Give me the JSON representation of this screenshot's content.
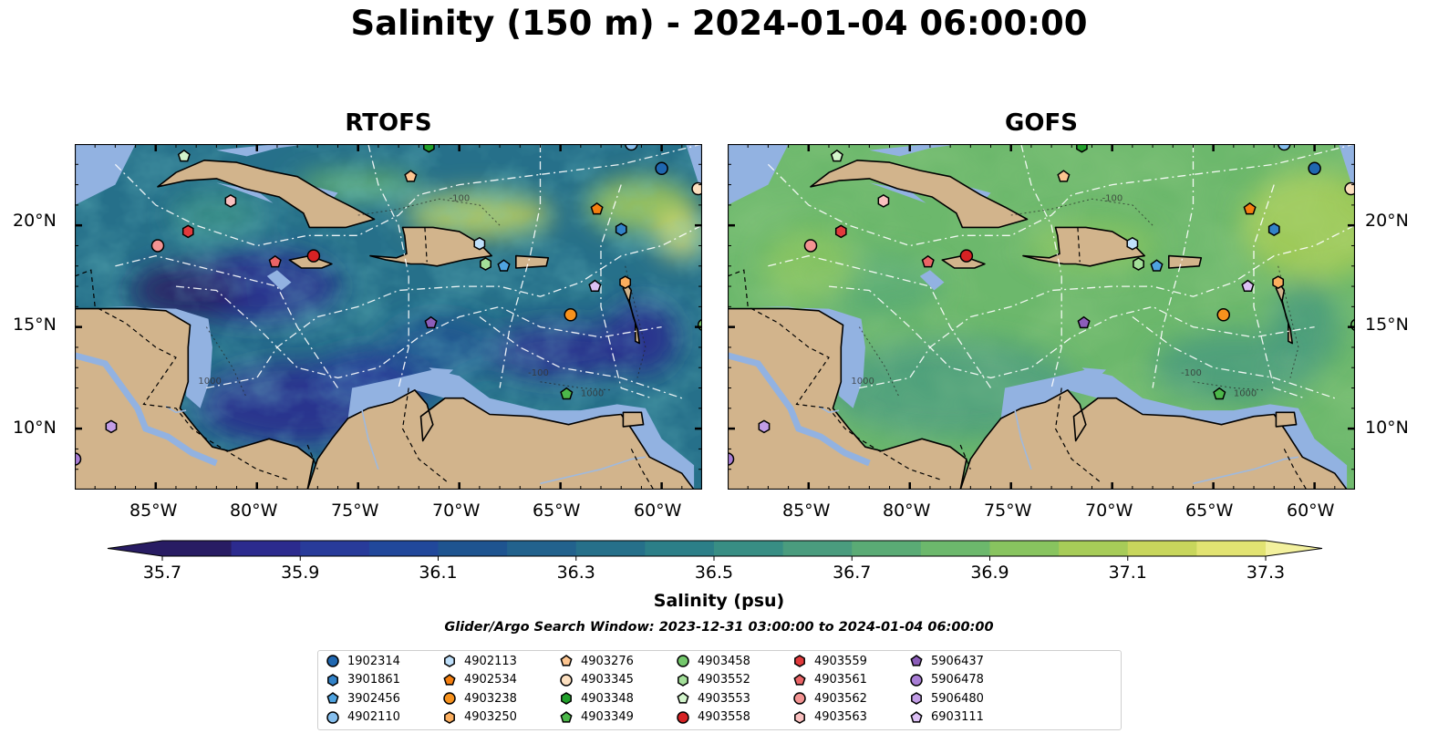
{
  "title": "Salinity (150 m) - 2024-01-04 06:00:00",
  "panels": [
    {
      "title": "RTOFS",
      "style": "rtofs"
    },
    {
      "title": "GOFS",
      "style": "gofs"
    }
  ],
  "lon_ticks": [
    "85°W",
    "80°W",
    "75°W",
    "70°W",
    "65°W",
    "60°W"
  ],
  "lat_ticks": [
    "20°N",
    "15°N",
    "10°N"
  ],
  "colorbar": {
    "min": 35.7,
    "max": 37.3,
    "tick_labels": [
      "35.7",
      "35.9",
      "36.1",
      "36.3",
      "36.5",
      "36.7",
      "36.9",
      "37.1",
      "37.3"
    ],
    "label": "Salinity (psu)",
    "colors": [
      "#281c63",
      "#2c2b8e",
      "#283b9a",
      "#21489b",
      "#1e5490",
      "#22628d",
      "#26708a",
      "#2c7f88",
      "#388e84",
      "#4a9c7e",
      "#5aab75",
      "#6cb86c",
      "#88c45f",
      "#a7cc58",
      "#c8d65c",
      "#e2e372",
      "#f3f19e"
    ]
  },
  "search_window": "Glider/Argo Search Window: 2023-12-31 03:00:00 to 2024-01-04 06:00:00",
  "legend": [
    {
      "label": "1902314",
      "color": "#1f67b0",
      "marker": "circle"
    },
    {
      "label": "3901861",
      "color": "#3282c8",
      "marker": "hexagon"
    },
    {
      "label": "3902456",
      "color": "#4fa3e0",
      "marker": "pentagon"
    },
    {
      "label": "4902110",
      "color": "#86bfee",
      "marker": "circle"
    },
    {
      "label": "4902113",
      "color": "#bfe0fb",
      "marker": "hexagon"
    },
    {
      "label": "4902534",
      "color": "#f57f0f",
      "marker": "pentagon"
    },
    {
      "label": "4903238",
      "color": "#f7921d",
      "marker": "circle"
    },
    {
      "label": "4903250",
      "color": "#fbae5e",
      "marker": "hexagon"
    },
    {
      "label": "4903276",
      "color": "#fdc590",
      "marker": "pentagon"
    },
    {
      "label": "4903345",
      "color": "#fde0c0",
      "marker": "circle"
    },
    {
      "label": "4903348",
      "color": "#22a02b",
      "marker": "hexagon"
    },
    {
      "label": "4903349",
      "color": "#4cb84a",
      "marker": "pentagon"
    },
    {
      "label": "4903458",
      "color": "#73c76b",
      "marker": "circle"
    },
    {
      "label": "4903552",
      "color": "#a3df99",
      "marker": "hexagon"
    },
    {
      "label": "4903553",
      "color": "#d3f5cc",
      "marker": "pentagon"
    },
    {
      "label": "4903558",
      "color": "#d62224",
      "marker": "circle"
    },
    {
      "label": "4903559",
      "color": "#e13a3c",
      "marker": "hexagon"
    },
    {
      "label": "4903561",
      "color": "#ea6466",
      "marker": "pentagon"
    },
    {
      "label": "4903562",
      "color": "#f39392",
      "marker": "circle"
    },
    {
      "label": "4903563",
      "color": "#fac0bf",
      "marker": "hexagon"
    },
    {
      "label": "5906437",
      "color": "#8c5db9",
      "marker": "pentagon"
    },
    {
      "label": "5906478",
      "color": "#a97ed6",
      "marker": "circle"
    },
    {
      "label": "5906480",
      "color": "#c29de6",
      "marker": "hexagon"
    },
    {
      "label": "6903111",
      "color": "#dcc0f4",
      "marker": "pentagon"
    }
  ],
  "floats_map": [
    {
      "id": "1902314",
      "lon": -60.0,
      "lat": 22.8
    },
    {
      "id": "3901861",
      "lon": -62.0,
      "lat": 19.8
    },
    {
      "id": "3902456",
      "lon": -67.8,
      "lat": 18.0
    },
    {
      "id": "4902110",
      "lon": -61.5,
      "lat": 24.0
    },
    {
      "id": "4902113",
      "lon": -69.0,
      "lat": 19.1
    },
    {
      "id": "4902534",
      "lon": -63.2,
      "lat": 20.8
    },
    {
      "id": "4903238",
      "lon": -64.5,
      "lat": 15.6
    },
    {
      "id": "4903250",
      "lon": -61.8,
      "lat": 17.2
    },
    {
      "id": "4903276",
      "lon": -72.4,
      "lat": 22.4
    },
    {
      "id": "4903345",
      "lon": -58.2,
      "lat": 21.8
    },
    {
      "id": "4903348",
      "lon": -71.5,
      "lat": 23.9
    },
    {
      "id": "4903349",
      "lon": -64.7,
      "lat": 11.7
    },
    {
      "id": "4903458",
      "lon": -57.9,
      "lat": 15.1
    },
    {
      "id": "4903552",
      "lon": -68.7,
      "lat": 18.1
    },
    {
      "id": "4903553",
      "lon": -83.6,
      "lat": 23.4
    },
    {
      "id": "4903558",
      "lon": -77.2,
      "lat": 18.5
    },
    {
      "id": "4903559",
      "lon": -83.4,
      "lat": 19.7
    },
    {
      "id": "4903561",
      "lon": -79.1,
      "lat": 18.2
    },
    {
      "id": "4903562",
      "lon": -84.9,
      "lat": 19.0
    },
    {
      "id": "4903563",
      "lon": -81.3,
      "lat": 21.2
    },
    {
      "id": "5906437",
      "lon": -71.4,
      "lat": 15.2
    },
    {
      "id": "5906478",
      "lon": -89.0,
      "lat": 8.5
    },
    {
      "id": "5906480",
      "lon": -87.2,
      "lat": 10.1
    },
    {
      "id": "6903111",
      "lon": -63.3,
      "lat": 17.0
    }
  ]
}
